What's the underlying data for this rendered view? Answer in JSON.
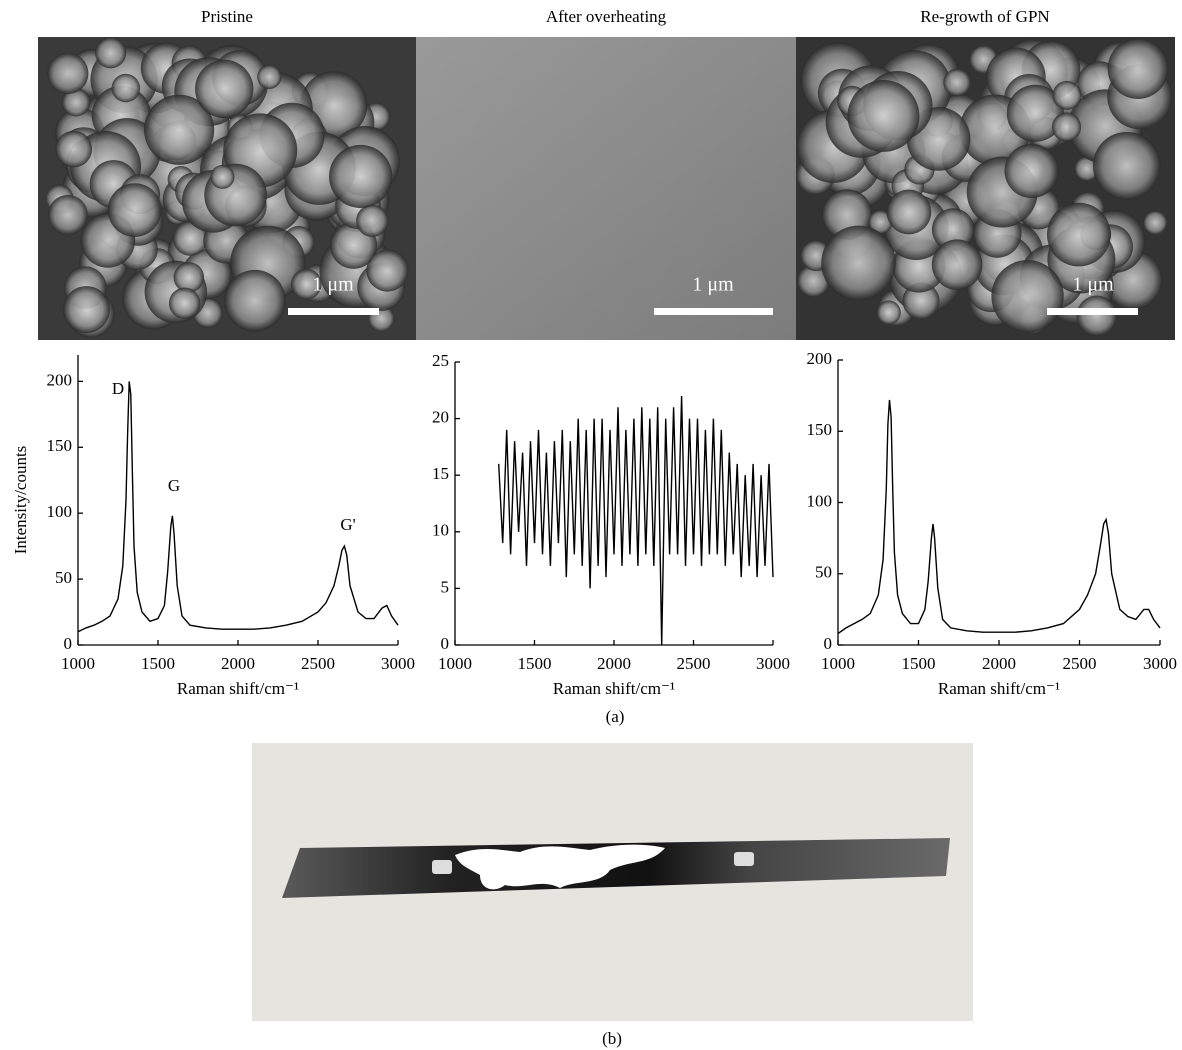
{
  "panel_titles": [
    "Pristine",
    "After overheating",
    "Re-growth of GPN"
  ],
  "scale_bar_label": "1 μm",
  "captions": {
    "a": "(a)",
    "b": "(b)"
  },
  "chart_data": [
    {
      "type": "line",
      "color": "#000000",
      "ylabel": "Intensity/counts",
      "xlabel": "Raman shift/cm⁻¹",
      "annotations": [
        "D",
        "G",
        "G'"
      ],
      "xlim": [
        1000,
        3000
      ],
      "xticks": [
        1000,
        1500,
        2000,
        2500,
        3000
      ],
      "ylim": [
        0,
        220
      ],
      "yticks": [
        0,
        50,
        100,
        150,
        200
      ],
      "x": [
        1000,
        1050,
        1100,
        1150,
        1200,
        1250,
        1280,
        1300,
        1310,
        1320,
        1330,
        1340,
        1350,
        1370,
        1400,
        1450,
        1500,
        1540,
        1560,
        1580,
        1590,
        1600,
        1620,
        1650,
        1700,
        1800,
        1900,
        2000,
        2100,
        2200,
        2300,
        2400,
        2500,
        2550,
        2600,
        2630,
        2650,
        2665,
        2680,
        2700,
        2750,
        2800,
        2850,
        2900,
        2930,
        2960,
        3000
      ],
      "values": [
        10,
        13,
        15,
        18,
        22,
        35,
        60,
        110,
        160,
        200,
        190,
        130,
        75,
        40,
        25,
        18,
        20,
        30,
        55,
        90,
        98,
        85,
        45,
        22,
        15,
        13,
        12,
        12,
        12,
        13,
        15,
        18,
        25,
        32,
        45,
        60,
        72,
        75,
        68,
        45,
        25,
        20,
        20,
        28,
        30,
        22,
        15
      ]
    },
    {
      "type": "line",
      "color": "#000000",
      "xlabel": "Raman shift/cm⁻¹",
      "xlim": [
        1000,
        3000
      ],
      "xticks": [
        1000,
        1500,
        2000,
        2500,
        3000
      ],
      "ylim": [
        0,
        25
      ],
      "yticks": [
        0,
        5,
        10,
        15,
        20,
        25
      ],
      "x": [
        1275,
        1300,
        1325,
        1350,
        1375,
        1400,
        1425,
        1450,
        1475,
        1500,
        1525,
        1550,
        1575,
        1600,
        1625,
        1650,
        1675,
        1700,
        1725,
        1750,
        1775,
        1800,
        1825,
        1850,
        1875,
        1900,
        1925,
        1950,
        1975,
        2000,
        2025,
        2050,
        2075,
        2100,
        2125,
        2150,
        2175,
        2200,
        2225,
        2250,
        2275,
        2300,
        2325,
        2350,
        2375,
        2400,
        2425,
        2450,
        2475,
        2500,
        2525,
        2550,
        2575,
        2600,
        2625,
        2650,
        2675,
        2700,
        2725,
        2750,
        2775,
        2800,
        2825,
        2850,
        2875,
        2900,
        2925,
        2950,
        2975,
        3000
      ],
      "values": [
        16,
        9,
        19,
        8,
        18,
        10,
        17,
        7,
        18,
        9,
        19,
        8,
        17,
        7,
        18,
        9,
        19,
        6,
        18,
        8,
        20,
        7,
        19,
        5,
        20,
        7,
        20,
        6,
        19,
        8,
        21,
        7,
        19,
        8,
        20,
        7,
        21,
        8,
        20,
        7,
        21,
        0,
        20,
        8,
        21,
        8,
        22,
        7,
        20,
        8,
        20,
        7,
        19,
        8,
        20,
        8,
        19,
        7,
        17,
        8,
        16,
        6,
        15,
        7,
        16,
        6,
        15,
        7,
        16,
        6
      ]
    },
    {
      "type": "line",
      "color": "#000000",
      "xlabel": "Raman shift/cm⁻¹",
      "xlim": [
        1000,
        3000
      ],
      "xticks": [
        1000,
        1500,
        2000,
        2500,
        3000
      ],
      "ylim": [
        0,
        200
      ],
      "yticks": [
        0,
        50,
        100,
        150,
        200
      ],
      "x": [
        1000,
        1050,
        1100,
        1150,
        1200,
        1250,
        1280,
        1300,
        1310,
        1320,
        1330,
        1340,
        1350,
        1370,
        1400,
        1450,
        1500,
        1540,
        1560,
        1580,
        1590,
        1600,
        1620,
        1650,
        1700,
        1800,
        1900,
        2000,
        2100,
        2200,
        2300,
        2400,
        2500,
        2550,
        2600,
        2630,
        2650,
        2665,
        2680,
        2700,
        2750,
        2800,
        2850,
        2900,
        2930,
        2960,
        3000
      ],
      "values": [
        8,
        12,
        15,
        18,
        22,
        35,
        60,
        110,
        155,
        172,
        160,
        110,
        65,
        35,
        22,
        15,
        15,
        25,
        45,
        75,
        85,
        75,
        40,
        18,
        12,
        10,
        9,
        9,
        9,
        10,
        12,
        15,
        25,
        35,
        50,
        70,
        85,
        88,
        78,
        50,
        25,
        20,
        18,
        25,
        25,
        18,
        12
      ]
    }
  ]
}
